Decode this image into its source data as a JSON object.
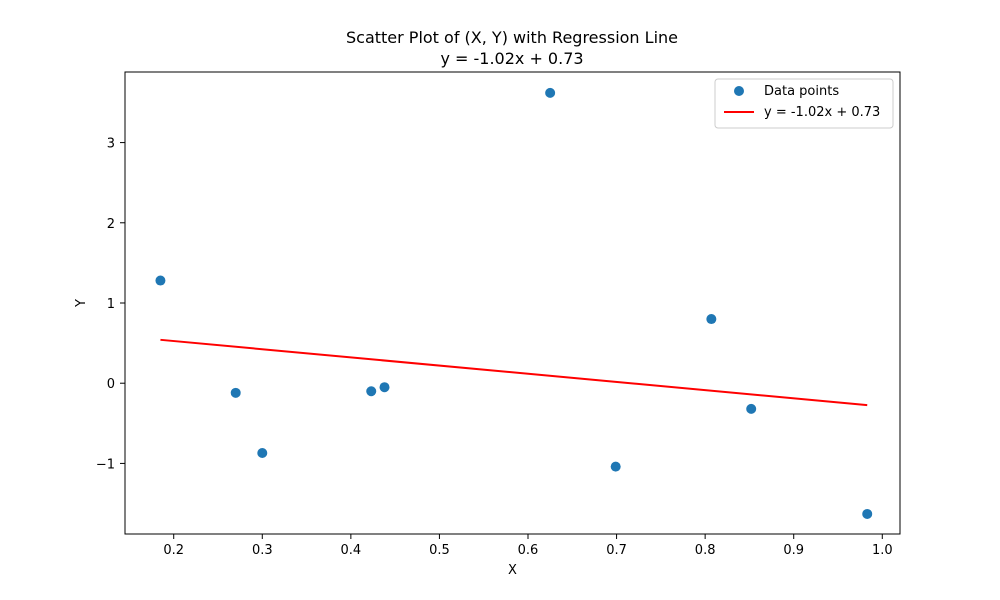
{
  "chart_data": {
    "type": "scatter",
    "title": "Scatter Plot of (X, Y) with Regression Line",
    "subtitle": "y = -1.02x + 0.73",
    "xlabel": "X",
    "ylabel": "Y",
    "xlim": [
      0.145,
      1.02
    ],
    "ylim": [
      -1.88,
      3.88
    ],
    "x_ticks": [
      0.2,
      0.3,
      0.4,
      0.5,
      0.6,
      0.7,
      0.8,
      0.9,
      1.0
    ],
    "x_tick_labels": [
      "0.2",
      "0.3",
      "0.4",
      "0.5",
      "0.6",
      "0.7",
      "0.8",
      "0.9",
      "1.0"
    ],
    "y_ticks": [
      -1,
      0,
      1,
      2,
      3
    ],
    "y_tick_labels": [
      "−1",
      "0",
      "1",
      "2",
      "3"
    ],
    "grid": false,
    "legend_position": "top-right",
    "series": [
      {
        "name": "Data points",
        "kind": "scatter",
        "color": "#1f77b4",
        "points": [
          {
            "x": 0.185,
            "y": 1.28
          },
          {
            "x": 0.27,
            "y": -0.12
          },
          {
            "x": 0.3,
            "y": -0.87
          },
          {
            "x": 0.423,
            "y": -0.1
          },
          {
            "x": 0.438,
            "y": -0.05
          },
          {
            "x": 0.625,
            "y": 3.62
          },
          {
            "x": 0.699,
            "y": -1.04
          },
          {
            "x": 0.807,
            "y": 0.8
          },
          {
            "x": 0.852,
            "y": -0.32
          },
          {
            "x": 0.983,
            "y": -1.63
          }
        ]
      },
      {
        "name": "y = -1.02x + 0.73",
        "kind": "line",
        "color": "#ff0000",
        "points": [
          {
            "x": 0.185,
            "y": 0.541
          },
          {
            "x": 0.983,
            "y": -0.273
          }
        ]
      }
    ]
  }
}
